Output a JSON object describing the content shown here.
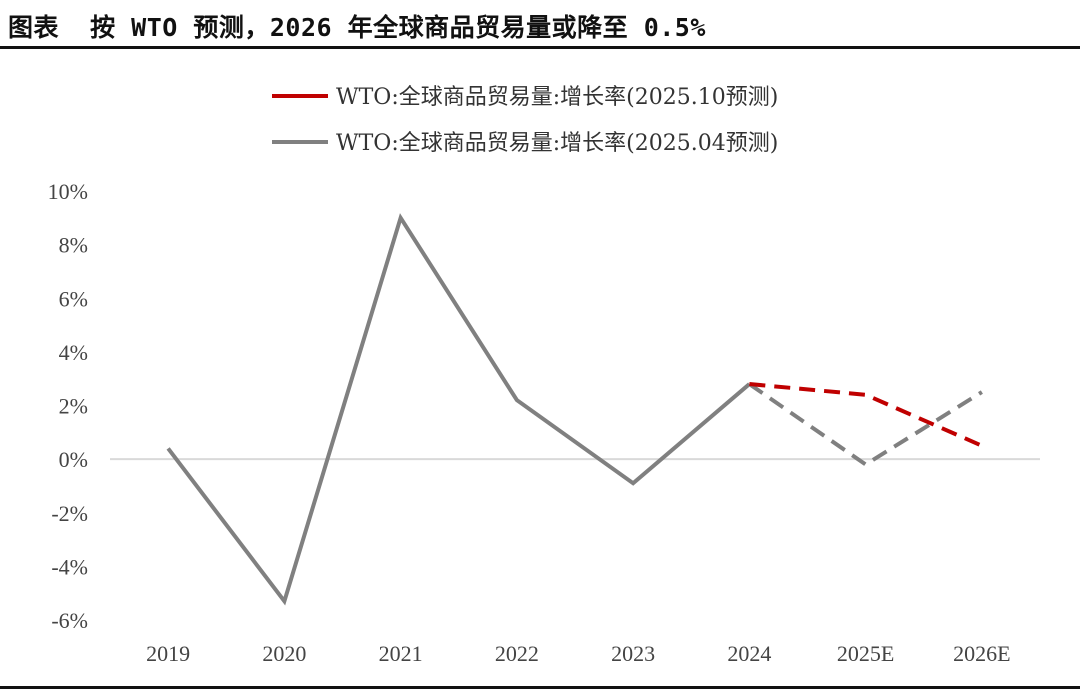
{
  "header": {
    "prefix": "图表",
    "title": "按 WTO 预测，2026 年全球商品贸易量或降至 0.5%"
  },
  "chart_data": {
    "type": "line",
    "categories": [
      "2019",
      "2020",
      "2021",
      "2022",
      "2023",
      "2024",
      "2025E",
      "2026E"
    ],
    "y_ticks": [
      "10%",
      "8%",
      "6%",
      "4%",
      "2%",
      "0%",
      "-2%",
      "-4%",
      "-6%"
    ],
    "ylim": [
      -6,
      10
    ],
    "series": [
      {
        "name": "WTO:全球商品贸易量:增长率(2025.10预测)",
        "color": "#c00000",
        "values": [
          null,
          null,
          null,
          null,
          null,
          2.8,
          2.4,
          0.5
        ],
        "dashed_from_index": 5
      },
      {
        "name": "WTO:全球商品贸易量:增长率(2025.04预测)",
        "color": "#808080",
        "values": [
          0.4,
          -5.3,
          9.0,
          2.2,
          -0.9,
          2.8,
          -0.2,
          2.5
        ],
        "dashed_from_index": 5
      }
    ],
    "legend_position": "top"
  }
}
